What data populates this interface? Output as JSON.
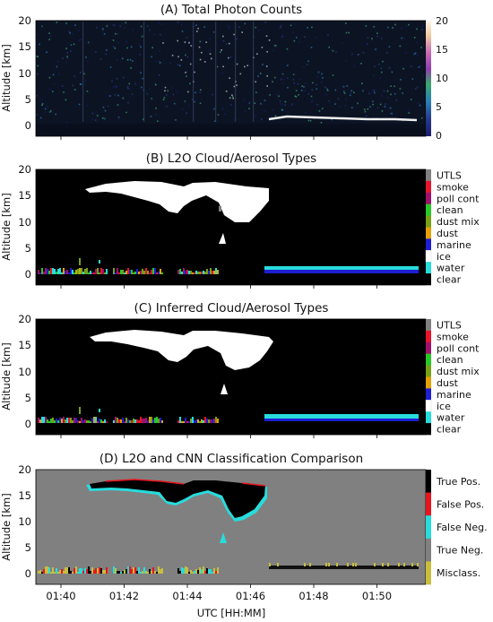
{
  "figure": {
    "xlabel": "UTC [HH:MM]"
  },
  "chart_data": [
    {
      "type": "heatmap",
      "title": "(A) Total Photon Counts",
      "ylabel": "Altitude [km]",
      "ylim": [
        -2,
        20
      ],
      "yticks": [
        "0",
        "5",
        "10",
        "15",
        "20"
      ],
      "colorbar_ticks": [
        "0",
        "5",
        "10",
        "15",
        "20"
      ],
      "colormap": [
        "#1a1c6e",
        "#263a8c",
        "#2a7fb8",
        "#3aa66b",
        "#8e3fb0",
        "#c46ab3",
        "#f0c9a0",
        "#fff7ec"
      ]
    },
    {
      "type": "heatmap",
      "title": "(B) L2O Cloud/Aerosol Types",
      "ylabel": "Altitude [km]",
      "ylim": [
        -2,
        20
      ],
      "yticks": [
        "0",
        "5",
        "10",
        "15",
        "20"
      ],
      "classes": [
        {
          "label": "UTLS",
          "color": "#808080"
        },
        {
          "label": "smoke",
          "color": "#e8142c"
        },
        {
          "label": "poll cont",
          "color": "#a0116b"
        },
        {
          "label": "clean",
          "color": "#28c828"
        },
        {
          "label": "dust mix",
          "color": "#78a018"
        },
        {
          "label": "dust",
          "color": "#e6a000"
        },
        {
          "label": "marine",
          "color": "#1e1ed2"
        },
        {
          "label": "ice",
          "color": "#ffffff"
        },
        {
          "label": "water",
          "color": "#28dcdc"
        },
        {
          "label": "clear",
          "color": "#000000"
        }
      ]
    },
    {
      "type": "heatmap",
      "title": "(C) Inferred Cloud/Aerosol Types",
      "ylabel": "Altitude [km]",
      "ylim": [
        -2,
        20
      ],
      "yticks": [
        "0",
        "5",
        "10",
        "15",
        "20"
      ],
      "classes": [
        {
          "label": "UTLS",
          "color": "#808080"
        },
        {
          "label": "smoke",
          "color": "#e8142c"
        },
        {
          "label": "poll cont",
          "color": "#a0116b"
        },
        {
          "label": "clean",
          "color": "#28c828"
        },
        {
          "label": "dust mix",
          "color": "#78a018"
        },
        {
          "label": "dust",
          "color": "#e6a000"
        },
        {
          "label": "marine",
          "color": "#1e1ed2"
        },
        {
          "label": "ice",
          "color": "#ffffff"
        },
        {
          "label": "water",
          "color": "#28dcdc"
        },
        {
          "label": "clear",
          "color": "#000000"
        }
      ]
    },
    {
      "type": "heatmap",
      "title": "(D) L2O and CNN Classification Comparison",
      "ylabel": "Altitude [km]",
      "ylim": [
        -2,
        20
      ],
      "yticks": [
        "0",
        "5",
        "10",
        "15",
        "20"
      ],
      "xticks": [
        "01:40",
        "01:42",
        "01:44",
        "01:46",
        "01:48",
        "01:50"
      ],
      "classes": [
        {
          "label": "True Pos.",
          "color": "#000000"
        },
        {
          "label": "False Pos.",
          "color": "#e8141e"
        },
        {
          "label": "False Neg.",
          "color": "#28dcdc"
        },
        {
          "label": "True Neg.",
          "color": "#808080"
        },
        {
          "label": "Misclass.",
          "color": "#c8be3c"
        }
      ]
    }
  ]
}
